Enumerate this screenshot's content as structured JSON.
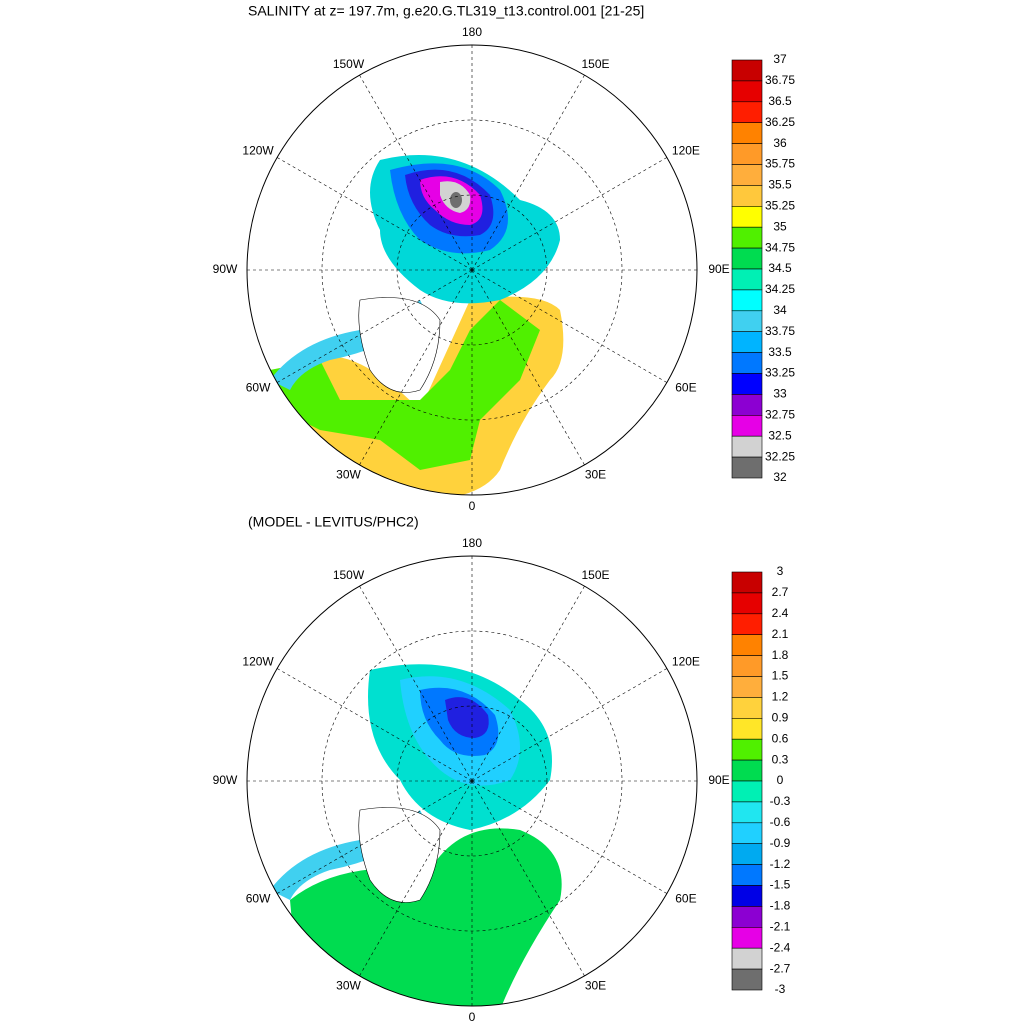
{
  "panels": [
    {
      "title": "SALINITY at z= 197.7m, g.e20.G.TL319_t13.control.001 [21-25]",
      "lon_labels": [
        "180",
        "150E",
        "120E",
        "90E",
        "60E",
        "30E",
        "0",
        "30W",
        "60W",
        "90W",
        "120W",
        "150W"
      ],
      "colorbar": {
        "levels": [
          37,
          36.75,
          36.5,
          36.25,
          36,
          35.75,
          35.5,
          35.25,
          35,
          34.75,
          34.5,
          34.25,
          34,
          33.75,
          33.5,
          33.25,
          33,
          32.75,
          32.5,
          32.25,
          32
        ],
        "colors": [
          "#c80000",
          "#e60000",
          "#ff1e00",
          "#ff8200",
          "#ff9a28",
          "#ffae3c",
          "#ffc83c",
          "#ffff00",
          "#50f000",
          "#00dc50",
          "#00f0b4",
          "#00ffff",
          "#40d0f0",
          "#00b4ff",
          "#0078ff",
          "#0000ff",
          "#8c00d2",
          "#e600e6",
          "#d2d2d2",
          "#6e6e6e"
        ]
      }
    },
    {
      "title": "(MODEL - LEVITUS/PHC2)",
      "lon_labels": [
        "180",
        "150E",
        "120E",
        "90E",
        "60E",
        "30E",
        "0",
        "30W",
        "60W",
        "90W",
        "120W",
        "150W"
      ],
      "colorbar": {
        "levels": [
          3,
          2.7,
          2.4,
          2.1,
          1.8,
          1.5,
          1.2,
          0.9,
          0.6,
          0.3,
          0,
          -0.3,
          -0.6,
          -0.9,
          -1.2,
          -1.5,
          -1.8,
          -2.1,
          -2.4,
          -2.7,
          -3
        ],
        "colors": [
          "#c80000",
          "#e60000",
          "#ff1e00",
          "#ff8200",
          "#ff9a28",
          "#ffae3c",
          "#ffd23c",
          "#ffe628",
          "#50f000",
          "#00dc50",
          "#00f0b4",
          "#20e6f0",
          "#20d0ff",
          "#00aaf0",
          "#0078ff",
          "#0000e6",
          "#8c00d2",
          "#e600e6",
          "#d2d2d2",
          "#6e6e6e"
        ]
      }
    }
  ]
}
